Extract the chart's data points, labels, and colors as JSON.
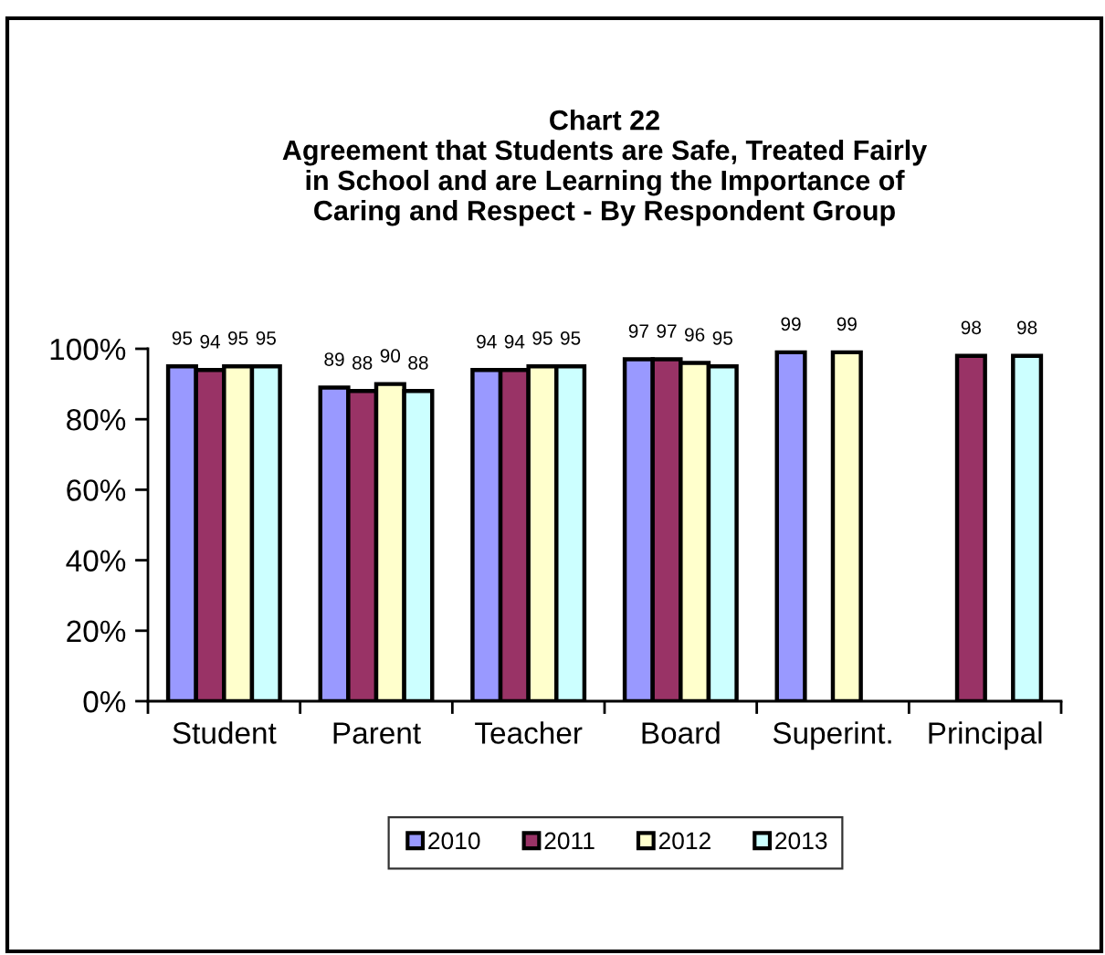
{
  "chart_data": {
    "type": "bar",
    "title": "Chart 22\nAgreement that Students are Safe, Treated Fairly\nin School and are Learning the Importance of\nCaring and Respect - By Respondent Group",
    "categories": [
      "Student",
      "Parent",
      "Teacher",
      "Board",
      "Superint.",
      "Principal"
    ],
    "series": [
      {
        "name": "2010",
        "color": "#9999ff",
        "values": [
          95,
          89,
          94,
          97,
          99,
          null
        ]
      },
      {
        "name": "2011",
        "color": "#993366",
        "values": [
          94,
          88,
          94,
          97,
          null,
          98
        ]
      },
      {
        "name": "2012",
        "color": "#ffffcc",
        "values": [
          95,
          90,
          95,
          96,
          99,
          null
        ]
      },
      {
        "name": "2013",
        "color": "#ccffff",
        "values": [
          95,
          88,
          95,
          95,
          null,
          98
        ]
      }
    ],
    "ylim": [
      0,
      100
    ],
    "yticks": [
      {
        "value": 0,
        "label": "0%"
      },
      {
        "value": 20,
        "label": "20%"
      },
      {
        "value": 40,
        "label": "40%"
      },
      {
        "value": 60,
        "label": "60%"
      },
      {
        "value": 80,
        "label": "80%"
      },
      {
        "value": 100,
        "label": "100%"
      }
    ],
    "data_labels": true,
    "legend": "bottom"
  }
}
